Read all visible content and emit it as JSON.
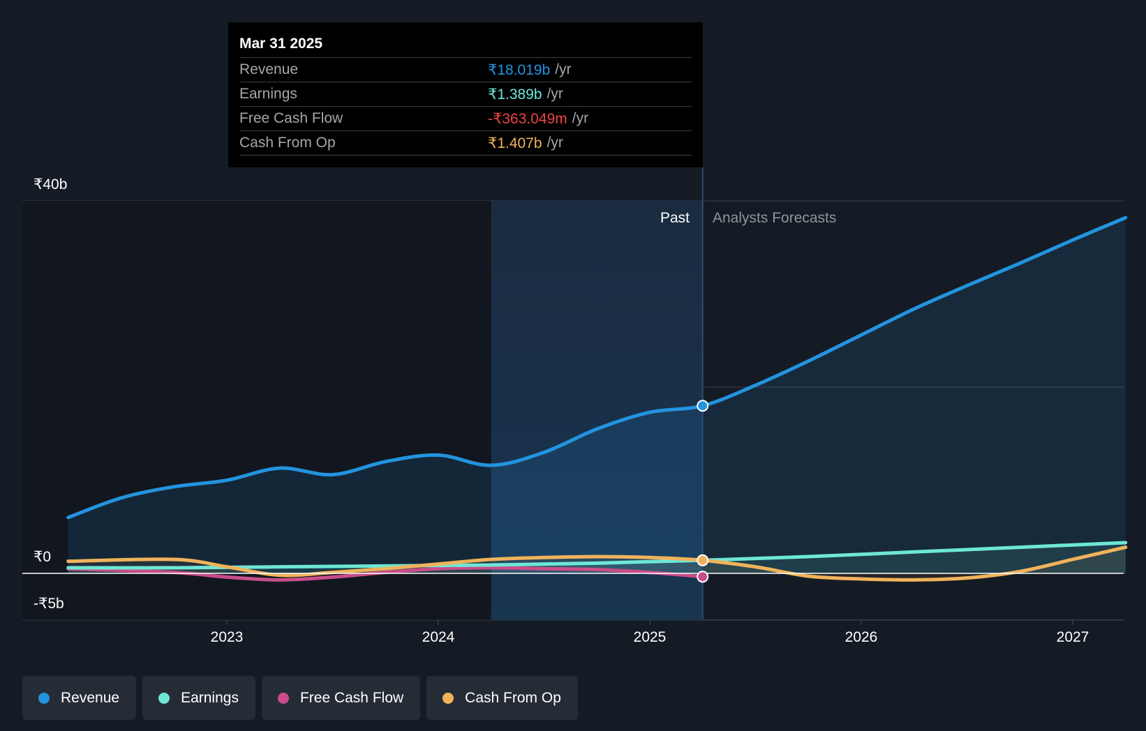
{
  "tooltip": {
    "date": "Mar 31 2025",
    "rows": [
      {
        "label": "Revenue",
        "value": "₹18.019b",
        "unit": "/yr",
        "color": "#2394df"
      },
      {
        "label": "Earnings",
        "value": "₹1.389b",
        "unit": "/yr",
        "color": "#6ee7d6"
      },
      {
        "label": "Free Cash Flow",
        "value": "-₹363.049m",
        "unit": "/yr",
        "color": "#ef4444"
      },
      {
        "label": "Cash From Op",
        "value": "₹1.407b",
        "unit": "/yr",
        "color": "#f0b35b"
      }
    ]
  },
  "regions": {
    "past": "Past",
    "forecast": "Analysts Forecasts"
  },
  "chart_data": {
    "type": "line",
    "y_tick_labels": [
      "₹40b",
      "₹0",
      "-₹5b"
    ],
    "y_ticks": [
      40,
      0,
      -5
    ],
    "ylim": [
      -5,
      40
    ],
    "xlim": [
      2022.2,
      2027.25
    ],
    "x_tick_labels": [
      "2023",
      "2024",
      "2025",
      "2026",
      "2027"
    ],
    "x_ticks": [
      2023,
      2024,
      2025,
      2026,
      2027
    ],
    "grid": true,
    "past_shade_range": [
      2024.25,
      2025.25
    ],
    "divider_x": 2025.25,
    "highlight_x": 2025.25,
    "series": [
      {
        "name": "Revenue",
        "color": "#2394df",
        "area": true,
        "x": [
          2022.25,
          2022.5,
          2022.75,
          2023.0,
          2023.25,
          2023.5,
          2023.75,
          2024.0,
          2024.25,
          2024.5,
          2024.75,
          2025.0,
          2025.25,
          2025.5,
          2025.75,
          2026.0,
          2026.25,
          2026.5,
          2026.75,
          2027.0,
          2027.25
        ],
        "values": [
          6.0,
          8.1,
          9.3,
          10.0,
          11.3,
          10.6,
          12.0,
          12.7,
          11.6,
          13.0,
          15.5,
          17.3,
          18.0,
          20.2,
          22.8,
          25.6,
          28.4,
          30.9,
          33.3,
          35.8,
          38.2
        ]
      },
      {
        "name": "Earnings",
        "color": "#6ee7d6",
        "area": true,
        "x": [
          2022.25,
          2022.75,
          2023.25,
          2023.75,
          2024.25,
          2024.75,
          2025.25,
          2025.75,
          2026.25,
          2026.75,
          2027.25
        ],
        "values": [
          0.6,
          0.6,
          0.7,
          0.8,
          0.9,
          1.1,
          1.4,
          1.8,
          2.3,
          2.8,
          3.3
        ]
      },
      {
        "name": "Free Cash Flow",
        "color": "#c94d8a",
        "area": false,
        "x": [
          2022.25,
          2022.75,
          2023.0,
          2023.25,
          2023.5,
          2023.75,
          2024.0,
          2024.25,
          2024.5,
          2024.75,
          2025.0,
          2025.25
        ],
        "values": [
          0.5,
          0.1,
          -0.4,
          -0.7,
          -0.4,
          0.1,
          0.5,
          0.6,
          0.5,
          0.4,
          0.1,
          -0.36
        ]
      },
      {
        "name": "Cash From Op",
        "color": "#f0b35b",
        "area": true,
        "x": [
          2022.25,
          2022.75,
          2023.0,
          2023.25,
          2023.5,
          2023.75,
          2024.0,
          2024.25,
          2024.5,
          2024.75,
          2025.0,
          2025.25,
          2025.5,
          2025.75,
          2026.0,
          2026.25,
          2026.5,
          2026.75,
          2027.0,
          2027.25
        ],
        "values": [
          1.3,
          1.5,
          0.7,
          -0.2,
          0.1,
          0.5,
          1.0,
          1.5,
          1.7,
          1.8,
          1.7,
          1.4,
          0.7,
          -0.3,
          -0.6,
          -0.7,
          -0.5,
          0.2,
          1.5,
          2.8
        ]
      }
    ]
  },
  "legend": [
    {
      "label": "Revenue",
      "color": "#2394df"
    },
    {
      "label": "Earnings",
      "color": "#6ee7d6"
    },
    {
      "label": "Free Cash Flow",
      "color": "#c94d8a"
    },
    {
      "label": "Cash From Op",
      "color": "#f0b35b"
    }
  ]
}
